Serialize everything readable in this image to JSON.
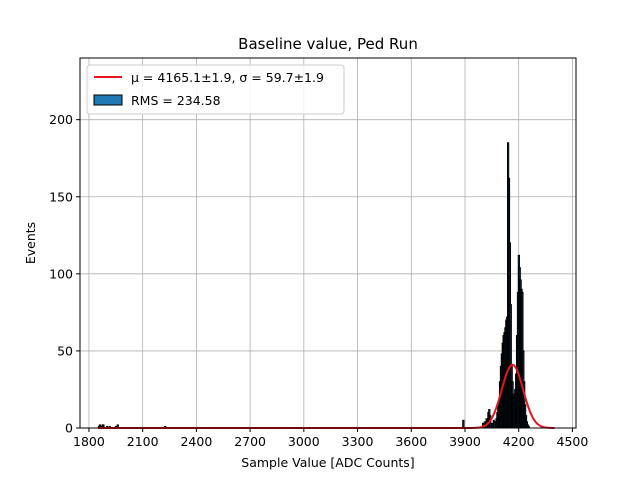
{
  "chart_data": {
    "type": "histogram",
    "title": "Baseline value, Ped Run",
    "xlabel": "Sample Value [ADC Counts]",
    "ylabel": "Events",
    "xlim": [
      1750,
      4520
    ],
    "ylim": [
      0,
      240
    ],
    "xticks": [
      1800,
      2100,
      2400,
      2700,
      3000,
      3300,
      3600,
      3900,
      4200,
      4500
    ],
    "yticks": [
      0,
      50,
      100,
      150,
      200
    ],
    "grid": true,
    "legend_position": "top-left",
    "colors": {
      "bars": "#1f77b4",
      "bar_edge": "#000000",
      "fit": "#e8141c"
    },
    "legend": [
      {
        "label": "μ = 4165.1±1.9, σ = 59.7±1.9",
        "kind": "line"
      },
      {
        "label": "RMS = 234.58",
        "kind": "bar"
      }
    ],
    "histogram": {
      "x": [
        1855,
        1860,
        1868,
        1875,
        1880,
        1900,
        1915,
        1950,
        1960,
        2225,
        3890,
        4000,
        4010,
        4020,
        4030,
        4035,
        4040,
        4050,
        4060,
        4065,
        4075,
        4080,
        4085,
        4090,
        4095,
        4100,
        4105,
        4110,
        4115,
        4120,
        4125,
        4130,
        4135,
        4140,
        4145,
        4150,
        4155,
        4160,
        4165,
        4170,
        4175,
        4180,
        4185,
        4190,
        4195,
        4200,
        4205,
        4210,
        4215,
        4220,
        4225,
        4230,
        4235,
        4240,
        4245,
        4250,
        4255
      ],
      "y": [
        1,
        2,
        1,
        2,
        2,
        1,
        1,
        1,
        2,
        1,
        5,
        3,
        4,
        6,
        10,
        12,
        8,
        3,
        5,
        4,
        6,
        10,
        14,
        18,
        30,
        40,
        48,
        55,
        60,
        62,
        65,
        70,
        72,
        185,
        162,
        120,
        80,
        40,
        30,
        22,
        20,
        25,
        35,
        60,
        88,
        112,
        104,
        96,
        90,
        88,
        50,
        30,
        15,
        8,
        4,
        2,
        1
      ]
    },
    "fit": {
      "type": "gaussian",
      "mu": 4165.1,
      "sigma": 59.7,
      "amplitude": 41,
      "range": [
        1850,
        4400
      ]
    }
  }
}
